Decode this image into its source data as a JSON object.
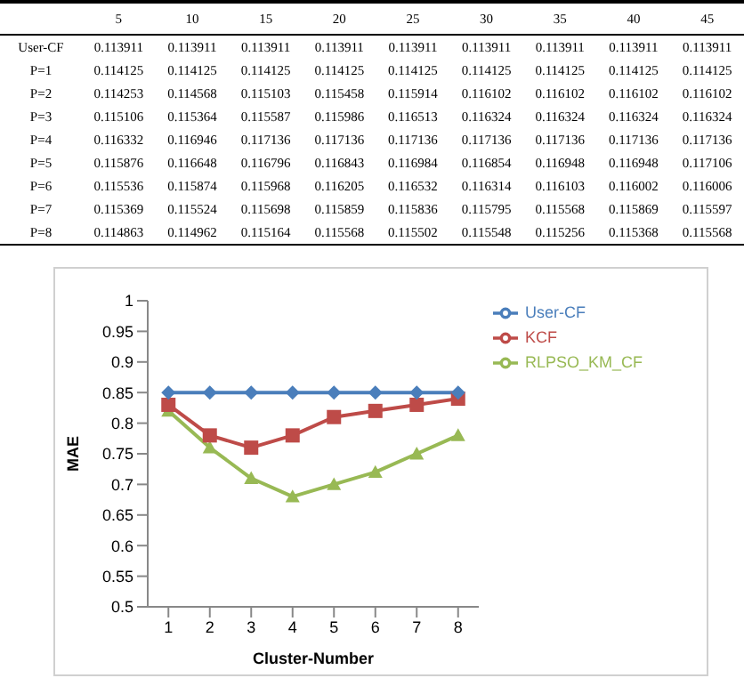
{
  "chart_data": [
    {
      "type": "heatmap",
      "categories": [
        "5",
        "10",
        "15",
        "20",
        "25",
        "30",
        "35",
        "40",
        "45"
      ],
      "y_categories": [
        "User-CF",
        "P=1",
        "P=2",
        "P=3",
        "P=4",
        "P=5",
        "P=6",
        "P=7",
        "P=8"
      ],
      "data_labels": true,
      "cells": [
        [
          0.113911,
          0.113911,
          0.113911,
          0.113911,
          0.113911,
          0.113911,
          0.113911,
          0.113911,
          0.113911
        ],
        [
          0.114125,
          0.114125,
          0.114125,
          0.114125,
          0.114125,
          0.114125,
          0.114125,
          0.114125,
          0.114125
        ],
        [
          0.114253,
          0.114568,
          0.115103,
          0.115458,
          0.115914,
          0.116102,
          0.116102,
          0.116102,
          0.116102
        ],
        [
          0.115106,
          0.115364,
          0.115587,
          0.115986,
          0.116513,
          0.116324,
          0.116324,
          0.116324,
          0.116324
        ],
        [
          0.116332,
          0.116946,
          0.117136,
          0.117136,
          0.117136,
          0.117136,
          0.117136,
          0.117136,
          0.117136
        ],
        [
          0.115876,
          0.116648,
          0.116796,
          0.116843,
          0.116984,
          0.116854,
          0.116948,
          0.116948,
          0.117106
        ],
        [
          0.115536,
          0.115874,
          0.115968,
          0.116205,
          0.116532,
          0.116314,
          0.116103,
          0.116002,
          0.116006
        ],
        [
          0.115369,
          0.115524,
          0.115698,
          0.115859,
          0.115836,
          0.115795,
          0.115568,
          0.115869,
          0.115597
        ],
        [
          0.114863,
          0.114962,
          0.115164,
          0.115568,
          0.115502,
          0.115548,
          0.115256,
          0.115368,
          0.115568
        ]
      ]
    },
    {
      "type": "line",
      "xlabel": "Cluster-Number",
      "ylabel": "MAE",
      "x": [
        1,
        2,
        3,
        4,
        5,
        6,
        7,
        8
      ],
      "xlim": [
        0.5,
        8.5
      ],
      "xticks": [
        1,
        2,
        3,
        4,
        5,
        6,
        7,
        8
      ],
      "ylim": [
        0.5,
        1
      ],
      "yticks": [
        0.5,
        0.55,
        0.6,
        0.65,
        0.7,
        0.75,
        0.8,
        0.85,
        0.9,
        0.95,
        1
      ],
      "grid": false,
      "legend": "right",
      "series": [
        {
          "name": "User-CF",
          "color": "#4a7ebb",
          "marker": "diamond",
          "values": [
            0.85,
            0.85,
            0.85,
            0.85,
            0.85,
            0.85,
            0.85,
            0.85
          ]
        },
        {
          "name": "KCF",
          "color": "#be4b48",
          "marker": "square",
          "values": [
            0.83,
            0.78,
            0.76,
            0.78,
            0.81,
            0.82,
            0.83,
            0.84
          ]
        },
        {
          "name": "RLPSO_KM_CF",
          "color": "#98b954",
          "marker": "triangle",
          "values": [
            0.82,
            0.76,
            0.71,
            0.68,
            0.7,
            0.72,
            0.75,
            0.78
          ]
        }
      ]
    }
  ]
}
